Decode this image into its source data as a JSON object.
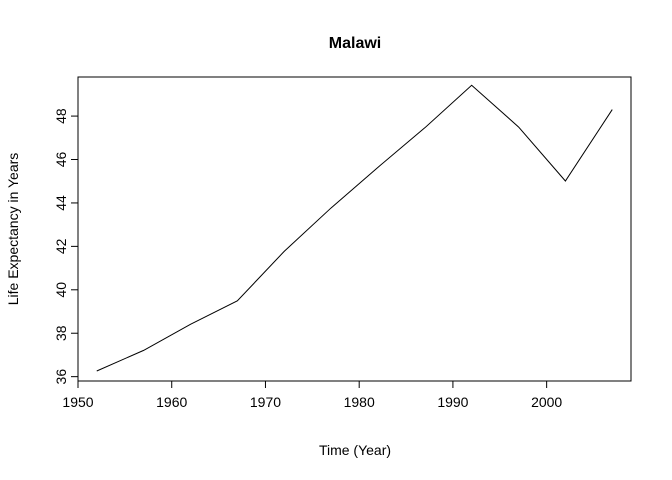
{
  "chart_data": {
    "type": "line",
    "title": "Malawi",
    "xlabel": "Time (Year)",
    "ylabel": "Life Expectancy in Years",
    "xlim": [
      1950,
      2009
    ],
    "ylim": [
      35.8,
      49.8
    ],
    "x_ticks": [
      1950,
      1960,
      1970,
      1980,
      1990,
      2000
    ],
    "y_ticks": [
      36,
      38,
      40,
      42,
      44,
      46,
      48
    ],
    "grid": false,
    "legend": "none",
    "line_color": "#000000",
    "series": [
      {
        "x": [
          1952,
          1957,
          1962,
          1967,
          1972,
          1977,
          1982,
          1987,
          1992,
          1997,
          2002,
          2007
        ],
        "y": [
          36.26,
          37.21,
          38.41,
          39.49,
          41.77,
          43.77,
          45.64,
          47.46,
          49.42,
          47.5,
          45.01,
          48.3
        ]
      }
    ]
  }
}
